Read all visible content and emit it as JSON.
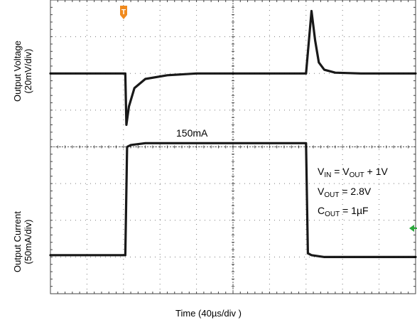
{
  "chart_data": {
    "type": "line",
    "x_divisions": 10,
    "y_divisions": 8,
    "xlabel": "Time (40µs/div )",
    "series": [
      {
        "name": "Output Voltage",
        "axis_label_line1": "Output  Voltage",
        "axis_label_line2": "(20mV/div)",
        "scale_per_div": "20mV",
        "x_div": [
          0,
          2.05,
          2.08,
          2.15,
          2.3,
          2.6,
          3.2,
          4.0,
          5.0,
          7.0,
          7.15,
          7.25,
          7.35,
          7.5,
          7.8,
          8.5,
          10
        ],
        "y_div": [
          6.0,
          6.0,
          4.6,
          5.1,
          5.6,
          5.85,
          5.95,
          6.0,
          6.0,
          6.0,
          7.7,
          6.9,
          6.3,
          6.1,
          6.02,
          6.0,
          6.0
        ],
        "color": "#000000"
      },
      {
        "name": "Output Current",
        "axis_label_line1": "Output Current",
        "axis_label_line2": "(50mA/div)",
        "scale_per_div": "50mA",
        "x_div": [
          0,
          2.05,
          2.1,
          2.2,
          2.6,
          3.5,
          7.0,
          7.05,
          7.15,
          7.5,
          10
        ],
        "y_div": [
          1.05,
          1.05,
          4.0,
          4.05,
          4.1,
          4.1,
          4.1,
          1.1,
          1.05,
          1.0,
          1.0
        ],
        "color": "#000000"
      }
    ],
    "annotations": {
      "load_step": "150mA",
      "vin_a": "V",
      "vin_a_sub": "IN",
      "vin_b": " = V",
      "vin_b_sub": "OUT",
      "vin_c": " + 1V",
      "vout_a": "V",
      "vout_a_sub": "OUT",
      "vout_b": " = 2.8V",
      "cout_a": "C",
      "cout_a_sub": "OUT",
      "cout_b": " = 1µF"
    },
    "trigger_marker": "T",
    "colors": {
      "trigger": "#f08a1e",
      "ground_marker": "#2aa83c",
      "grid": "#7a7a7a"
    }
  }
}
